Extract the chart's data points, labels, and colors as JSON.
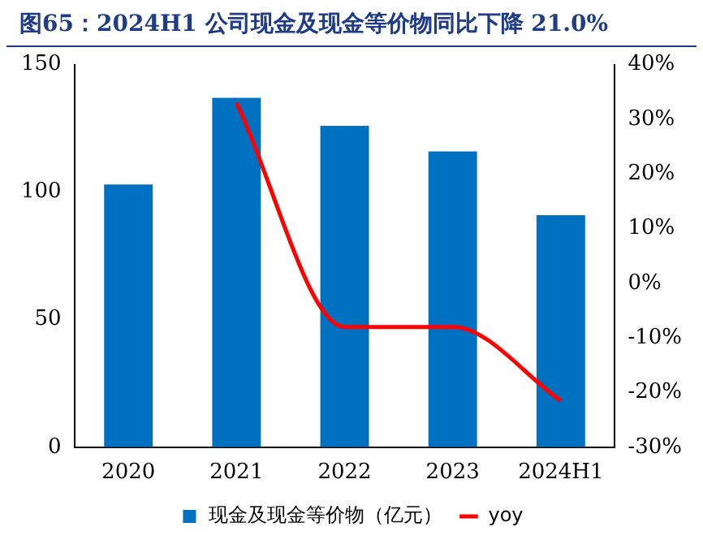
{
  "chart_data": {
    "type": "bar",
    "title": "图65：2024H1 公司现金及现金等价物同比下降 21.0%",
    "categories": [
      "2020",
      "2021",
      "2022",
      "2023",
      "2024H1"
    ],
    "series": [
      {
        "name": "现金及现金等价物（亿元）",
        "color": "#0070c0",
        "values": [
          103,
          137,
          126,
          116,
          91
        ]
      },
      {
        "name": "yoy",
        "type": "line",
        "axis": "y2",
        "color": "#ff0000",
        "values": [
          null,
          33,
          -8,
          -8,
          -21.5
        ]
      }
    ],
    "ylim": [
      0,
      150
    ],
    "yticks": [
      0,
      50,
      100,
      150
    ],
    "y2lim": [
      -30,
      40
    ],
    "y2ticks": [
      {
        "value": -30,
        "label": "-30%"
      },
      {
        "value": -20,
        "label": "-20%"
      },
      {
        "value": -10,
        "label": "-10%"
      },
      {
        "value": 0,
        "label": "0%"
      },
      {
        "value": 10,
        "label": "10%"
      },
      {
        "value": 20,
        "label": "20%"
      },
      {
        "value": 30,
        "label": "30%"
      },
      {
        "value": 40,
        "label": "40%"
      }
    ],
    "grid": false,
    "legend": "bottom",
    "marker": "none"
  }
}
